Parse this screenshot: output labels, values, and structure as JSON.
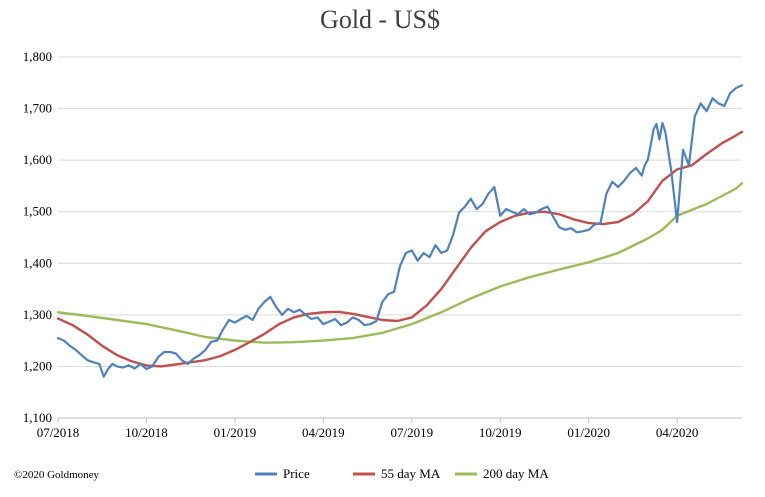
{
  "chart_data": {
    "type": "line",
    "title": "Gold - US$",
    "xlabel": "",
    "ylabel": "",
    "ylim": [
      1100,
      1800
    ],
    "y_ticks": [
      "1,100",
      "1,200",
      "1,300",
      "1,400",
      "1,500",
      "1,600",
      "1,700",
      "1,800"
    ],
    "y_tick_values": [
      1100,
      1200,
      1300,
      1400,
      1500,
      1600,
      1700,
      1800
    ],
    "x_ticks": [
      "07/2018",
      "10/2018",
      "01/2019",
      "04/2019",
      "07/2019",
      "10/2019",
      "01/2020",
      "04/2020"
    ],
    "x_tick_months": [
      0,
      3,
      6,
      9,
      12,
      15,
      18,
      21
    ],
    "xlim_months": [
      0,
      23.2
    ],
    "grid": true,
    "legend_position": "bottom",
    "colors": {
      "price": "#4f81bd",
      "ma55": "#c0504d",
      "ma200": "#9bbb59",
      "grid": "#d9d9d9"
    },
    "series": [
      {
        "name": "Price",
        "x_months": [
          0,
          0.2,
          0.4,
          0.6,
          0.8,
          1.0,
          1.2,
          1.4,
          1.55,
          1.7,
          1.85,
          2.0,
          2.2,
          2.4,
          2.6,
          2.8,
          3.0,
          3.2,
          3.4,
          3.6,
          3.8,
          4.0,
          4.2,
          4.4,
          4.6,
          4.8,
          5.0,
          5.2,
          5.4,
          5.6,
          5.8,
          6.0,
          6.2,
          6.4,
          6.6,
          6.8,
          7.0,
          7.2,
          7.4,
          7.6,
          7.8,
          8.0,
          8.2,
          8.4,
          8.6,
          8.8,
          9.0,
          9.2,
          9.4,
          9.6,
          9.8,
          10.0,
          10.2,
          10.4,
          10.6,
          10.8,
          11.0,
          11.2,
          11.4,
          11.6,
          11.8,
          12.0,
          12.2,
          12.4,
          12.6,
          12.8,
          13.0,
          13.2,
          13.4,
          13.6,
          13.8,
          14.0,
          14.2,
          14.4,
          14.6,
          14.8,
          15.0,
          15.2,
          15.4,
          15.6,
          15.8,
          16.0,
          16.2,
          16.4,
          16.6,
          16.8,
          17.0,
          17.2,
          17.4,
          17.6,
          17.8,
          18.0,
          18.2,
          18.4,
          18.6,
          18.8,
          19.0,
          19.2,
          19.4,
          19.6,
          19.8,
          19.9,
          20.0,
          20.1,
          20.2,
          20.3,
          20.4,
          20.5,
          20.6,
          20.8,
          21.0,
          21.2,
          21.4,
          21.6,
          21.8,
          22.0,
          22.2,
          22.4,
          22.6,
          22.8,
          23.0,
          23.2
        ],
        "values": [
          1255,
          1250,
          1240,
          1232,
          1222,
          1212,
          1208,
          1205,
          1180,
          1195,
          1205,
          1200,
          1198,
          1202,
          1196,
          1205,
          1195,
          1200,
          1218,
          1228,
          1228,
          1225,
          1212,
          1205,
          1215,
          1222,
          1232,
          1248,
          1250,
          1272,
          1290,
          1285,
          1292,
          1298,
          1290,
          1312,
          1325,
          1335,
          1315,
          1300,
          1312,
          1305,
          1310,
          1300,
          1292,
          1295,
          1282,
          1287,
          1292,
          1280,
          1285,
          1295,
          1290,
          1280,
          1282,
          1288,
          1325,
          1340,
          1345,
          1395,
          1420,
          1425,
          1405,
          1420,
          1412,
          1435,
          1420,
          1425,
          1455,
          1498,
          1510,
          1525,
          1505,
          1515,
          1535,
          1548,
          1492,
          1505,
          1500,
          1495,
          1505,
          1495,
          1498,
          1505,
          1510,
          1490,
          1470,
          1465,
          1468,
          1460,
          1462,
          1465,
          1475,
          1478,
          1535,
          1558,
          1548,
          1560,
          1575,
          1585,
          1570,
          1590,
          1600,
          1628,
          1660,
          1670,
          1640,
          1672,
          1655,
          1580,
          1480,
          1620,
          1590,
          1685,
          1710,
          1695,
          1720,
          1710,
          1705,
          1730,
          1740,
          1745
        ]
      },
      {
        "name": "55 day MA",
        "x_months": [
          0,
          0.5,
          1.0,
          1.5,
          2.0,
          2.5,
          3.0,
          3.5,
          4.0,
          4.5,
          5.0,
          5.5,
          6.0,
          6.5,
          7.0,
          7.5,
          8.0,
          8.5,
          9.0,
          9.5,
          10.0,
          10.5,
          11.0,
          11.5,
          12.0,
          12.5,
          13.0,
          13.5,
          14.0,
          14.5,
          15.0,
          15.5,
          16.0,
          16.5,
          17.0,
          17.5,
          18.0,
          18.5,
          19.0,
          19.5,
          20.0,
          20.5,
          21.0,
          21.5,
          22.0,
          22.5,
          23.0,
          23.2
        ],
        "values": [
          1293,
          1280,
          1262,
          1240,
          1222,
          1210,
          1202,
          1200,
          1204,
          1208,
          1212,
          1220,
          1232,
          1247,
          1263,
          1282,
          1295,
          1302,
          1305,
          1306,
          1302,
          1296,
          1290,
          1288,
          1295,
          1318,
          1350,
          1390,
          1430,
          1462,
          1480,
          1492,
          1498,
          1500,
          1495,
          1485,
          1478,
          1476,
          1480,
          1495,
          1520,
          1560,
          1582,
          1590,
          1612,
          1632,
          1648,
          1655
        ]
      },
      {
        "name": "200 day MA",
        "x_months": [
          0,
          1,
          2,
          3,
          4,
          5,
          6,
          7,
          8,
          9,
          10,
          11,
          12,
          13,
          14,
          15,
          16,
          17,
          18,
          19,
          20,
          20.5,
          21,
          22,
          23,
          23.2
        ],
        "values": [
          1305,
          1298,
          1290,
          1282,
          1270,
          1257,
          1250,
          1246,
          1247,
          1250,
          1255,
          1265,
          1282,
          1305,
          1332,
          1355,
          1373,
          1388,
          1402,
          1420,
          1448,
          1465,
          1492,
          1515,
          1545,
          1555
        ]
      }
    ]
  },
  "footer": {
    "copyright": "©2020 Goldmoney"
  }
}
